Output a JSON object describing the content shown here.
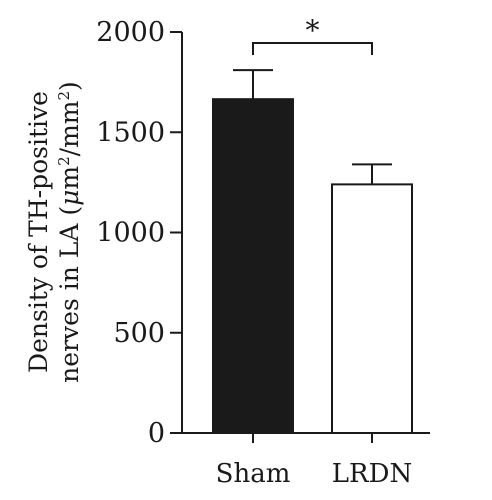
{
  "chart_data": {
    "type": "bar",
    "title": "",
    "xlabel": "",
    "ylabel_line1": "Density of TH-positive",
    "ylabel_line2_prefix": "nerves in LA (",
    "ylabel_mu": "μ",
    "ylabel_m": "m",
    "ylabel_sup1": "2",
    "ylabel_mid": "/mm",
    "ylabel_sup2": "2",
    "ylabel_suffix": ")",
    "categories": [
      "Sham",
      "LRDN"
    ],
    "values": [
      1665,
      1240
    ],
    "errors": [
      145,
      100
    ],
    "bar_fills": [
      "#1a1a1a",
      "#ffffff"
    ],
    "bar_stroke": "#1a1a1a",
    "ylim": [
      0,
      2000
    ],
    "yticks": [
      0,
      500,
      1000,
      1500,
      2000
    ],
    "ytick_labels": [
      "0",
      "500",
      "1000",
      "1500",
      "2000"
    ],
    "grid": false,
    "legend": "none",
    "significance": {
      "from": 0,
      "to": 1,
      "label": "*"
    }
  }
}
